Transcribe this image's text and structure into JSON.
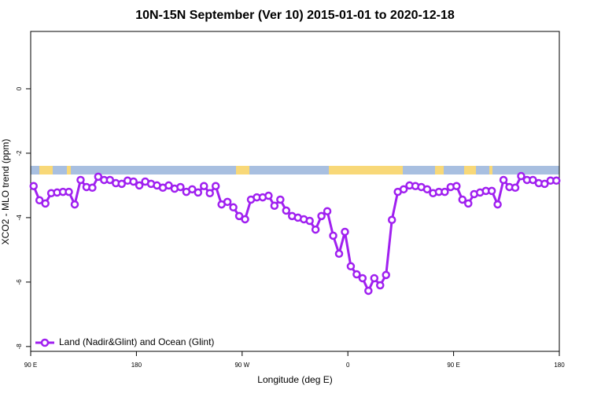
{
  "chart_data": {
    "type": "line",
    "title": "10N-15N September (Ver 10)   2015-01-01 to 2020-12-18",
    "x_label": "Longitude (deg E)",
    "y_label": "XCO2 - MLO trend (ppm)",
    "xlim": [
      90,
      540
    ],
    "xticks": [
      {
        "value": 90,
        "label": "90 E"
      },
      180,
      {
        "value": 270,
        "label": "90 W"
      },
      {
        "value": 360,
        "label": "0"
      },
      {
        "value": 450,
        "label": "90 E"
      },
      {
        "value": 540,
        "label": "180"
      }
    ],
    "ylim": [
      -8.15,
      1.78
    ],
    "yticks": [
      0,
      -2,
      -4,
      -6,
      -8
    ],
    "legend": "bottom-left",
    "x": [
      92.5,
      97.5,
      102.5,
      107.5,
      112.5,
      117.5,
      122.5,
      127.5,
      132.5,
      137.5,
      142.5,
      147.5,
      152.5,
      157.5,
      162.5,
      167.5,
      172.5,
      177.5,
      182.5,
      187.5,
      192.5,
      197.5,
      202.5,
      207.5,
      212.5,
      217.5,
      222.5,
      227.5,
      232.5,
      237.5,
      242.5,
      247.5,
      252.5,
      257.5,
      262.5,
      267.5,
      272.5,
      277.5,
      282.5,
      287.5,
      292.5,
      297.5,
      302.5,
      307.5,
      312.5,
      317.5,
      322.5,
      327.5,
      332.5,
      337.5,
      342.5,
      347.5,
      352.5,
      357.5,
      362.5,
      367.5,
      372.5,
      377.5,
      382.5,
      387.5,
      392.5,
      397.5,
      402.5,
      407.5,
      412.5,
      417.5,
      422.5,
      427.5,
      432.5,
      437.5,
      442.5,
      447.5,
      452.5,
      457.5,
      462.5,
      467.5,
      472.5,
      477.5,
      482.5,
      487.5,
      492.5,
      497.5,
      502.5,
      507.5,
      512.5,
      517.5,
      522.5,
      527.5,
      532.5,
      537.5
    ],
    "series": [
      {
        "name": "Land (Nadir&Glint) and Ocean (Glint)",
        "color": "#a020f0",
        "values": [
          -3.02,
          -3.46,
          -3.56,
          -3.24,
          -3.22,
          -3.2,
          -3.2,
          -3.59,
          -2.83,
          -3.05,
          -3.07,
          -2.73,
          -2.83,
          -2.83,
          -2.93,
          -2.95,
          -2.85,
          -2.88,
          -3.0,
          -2.88,
          -2.95,
          -3.0,
          -3.07,
          -3.0,
          -3.1,
          -3.05,
          -3.2,
          -3.12,
          -3.22,
          -3.02,
          -3.24,
          -3.02,
          -3.59,
          -3.51,
          -3.68,
          -3.95,
          -4.05,
          -3.44,
          -3.37,
          -3.37,
          -3.32,
          -3.63,
          -3.44,
          -3.78,
          -3.95,
          -4.0,
          -4.05,
          -4.1,
          -4.37,
          -3.95,
          -3.8,
          -4.56,
          -5.12,
          -4.44,
          -5.51,
          -5.76,
          -5.88,
          -6.27,
          -5.88,
          -6.1,
          -5.78,
          -4.07,
          -3.2,
          -3.12,
          -3.0,
          -3.02,
          -3.05,
          -3.12,
          -3.24,
          -3.2,
          -3.2,
          -3.05,
          -3.02,
          -3.44,
          -3.56,
          -3.27,
          -3.22,
          -3.17,
          -3.17,
          -3.59,
          -2.83,
          -3.05,
          -3.07,
          -2.71,
          -2.83,
          -2.83,
          -2.93,
          -2.95,
          -2.85,
          -2.85
        ]
      }
    ]
  }
}
